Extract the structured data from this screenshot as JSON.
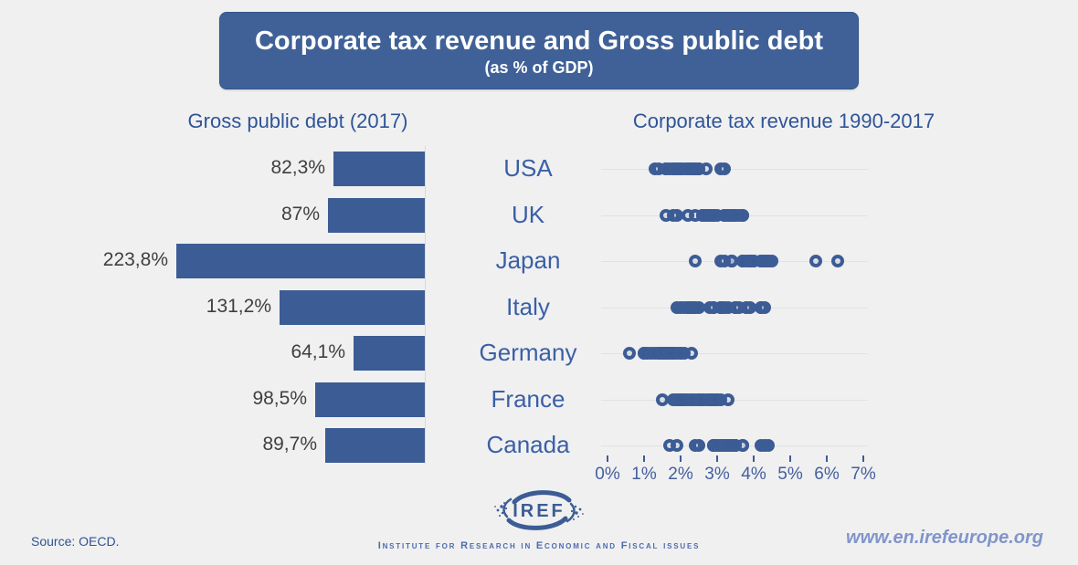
{
  "header": {
    "title": "Corporate tax revenue and Gross public debt",
    "subtitle": "(as % of GDP)"
  },
  "footer": {
    "source": "Source: OECD.",
    "logo_text": "IREF",
    "institute": "Institute for Research in Economic and Fiscal issues",
    "url": "www.en.irefeurope.org"
  },
  "colors": {
    "background": "#f0f0f1",
    "primary_blue": "#3c5c95",
    "title_box_bg": "#3f6197",
    "title_box_border": "#35548c",
    "heading_blue": "#2f5597",
    "country_blue": "#3a5fa5",
    "value_gray": "#3f3f3f",
    "axis_blue": "#44609c",
    "gridline": "#e2e2e4",
    "baseline": "#d9d9dc",
    "source_blue": "#2f538f",
    "institute_blue": "#4d6cae",
    "url_blue": "#8095c9"
  },
  "chart_data": [
    {
      "type": "bar",
      "title": "Gross public debt (2017)",
      "orientation": "horizontal-right-baseline",
      "categories": [
        "USA",
        "UK",
        "Japan",
        "Italy",
        "Germany",
        "France",
        "Canada"
      ],
      "values": [
        82.3,
        87,
        223.8,
        131.2,
        64.1,
        98.5,
        89.7
      ],
      "value_labels": [
        "82,3%",
        "87%",
        "223,8%",
        "131,2%",
        "64,1%",
        "98,5%",
        "89,7%"
      ],
      "xlim": [
        0,
        223.8
      ],
      "grid": false,
      "legend": "none"
    },
    {
      "type": "scatter",
      "title": "Corporate tax revenue 1990-2017",
      "categories": [
        "USA",
        "UK",
        "Japan",
        "Italy",
        "Germany",
        "France",
        "Canada"
      ],
      "x_axis": {
        "min": 0,
        "max": 7,
        "tick_labels": [
          "0%",
          "1%",
          "2%",
          "3%",
          "4%",
          "5%",
          "6%",
          "7%"
        ]
      },
      "years": "1990-2017",
      "grid": "horizontal-per-row",
      "legend": "none",
      "series": [
        {
          "name": "USA",
          "values": [
            1.9,
            1.8,
            1.9,
            2.1,
            2.3,
            2.4,
            2.5,
            2.5,
            2.4,
            2.3,
            2.4,
            1.7,
            1.4,
            1.6,
            2.0,
            2.7,
            3.1,
            3.2,
            2.0,
            1.3,
            1.8,
            1.6,
            2.2,
            2.3,
            2.4,
            2.3,
            2.2,
            1.9
          ]
        },
        {
          "name": "UK",
          "values": [
            3.5,
            3.2,
            2.9,
            2.6,
            2.8,
            2.9,
            3.3,
            3.7,
            3.6,
            3.4,
            3.4,
            3.3,
            2.8,
            2.6,
            2.7,
            3.2,
            3.7,
            3.4,
            3.5,
            2.7,
            3.0,
            2.9,
            2.6,
            2.4,
            2.2,
            1.6,
            1.8,
            1.9
          ]
        },
        {
          "name": "Japan",
          "values": [
            6.3,
            5.7,
            4.4,
            4.0,
            3.9,
            4.2,
            4.4,
            4.3,
            3.8,
            3.4,
            3.7,
            3.4,
            3.1,
            3.4,
            3.7,
            4.2,
            4.5,
            4.4,
            3.9,
            2.4,
            3.2,
            3.4,
            3.7,
            3.9,
            3.9,
            4.3,
            3.9,
            4.0
          ]
        },
        {
          "name": "Italy",
          "values": [
            3.8,
            3.9,
            4.2,
            4.3,
            3.6,
            3.5,
            3.8,
            4.2,
            3.1,
            3.2,
            2.9,
            3.5,
            3.1,
            2.8,
            2.4,
            2.3,
            2.9,
            3.3,
            3.1,
            2.4,
            2.3,
            2.2,
            2.3,
            2.5,
            2.2,
            2.0,
            2.1,
            1.9
          ]
        },
        {
          "name": "Germany",
          "values": [
            1.7,
            1.6,
            1.5,
            1.4,
            1.1,
            1.0,
            1.4,
            1.5,
            1.6,
            1.8,
            1.8,
            0.6,
            1.0,
            1.2,
            1.6,
            1.7,
            2.1,
            2.3,
            1.9,
            1.3,
            1.5,
            1.7,
            1.8,
            1.8,
            1.7,
            1.7,
            2.0,
            2.0
          ]
        },
        {
          "name": "France",
          "values": [
            2.2,
            2.0,
            1.9,
            1.8,
            1.9,
            2.1,
            2.3,
            2.5,
            2.6,
            2.8,
            3.0,
            3.1,
            2.8,
            2.4,
            2.7,
            2.8,
            3.0,
            2.9,
            2.9,
            1.5,
            2.1,
            2.5,
            2.5,
            2.6,
            2.3,
            2.1,
            2.0,
            3.3
          ]
        },
        {
          "name": "Canada",
          "values": [
            2.5,
            1.7,
            1.9,
            2.4,
            2.9,
            3.2,
            3.5,
            3.7,
            3.4,
            4.2,
            4.3,
            3.3,
            3.1,
            3.3,
            3.5,
            3.4,
            3.7,
            3.5,
            3.3,
            3.2,
            3.1,
            3.0,
            2.9,
            2.9,
            3.0,
            3.2,
            3.3,
            4.4
          ]
        }
      ]
    }
  ]
}
